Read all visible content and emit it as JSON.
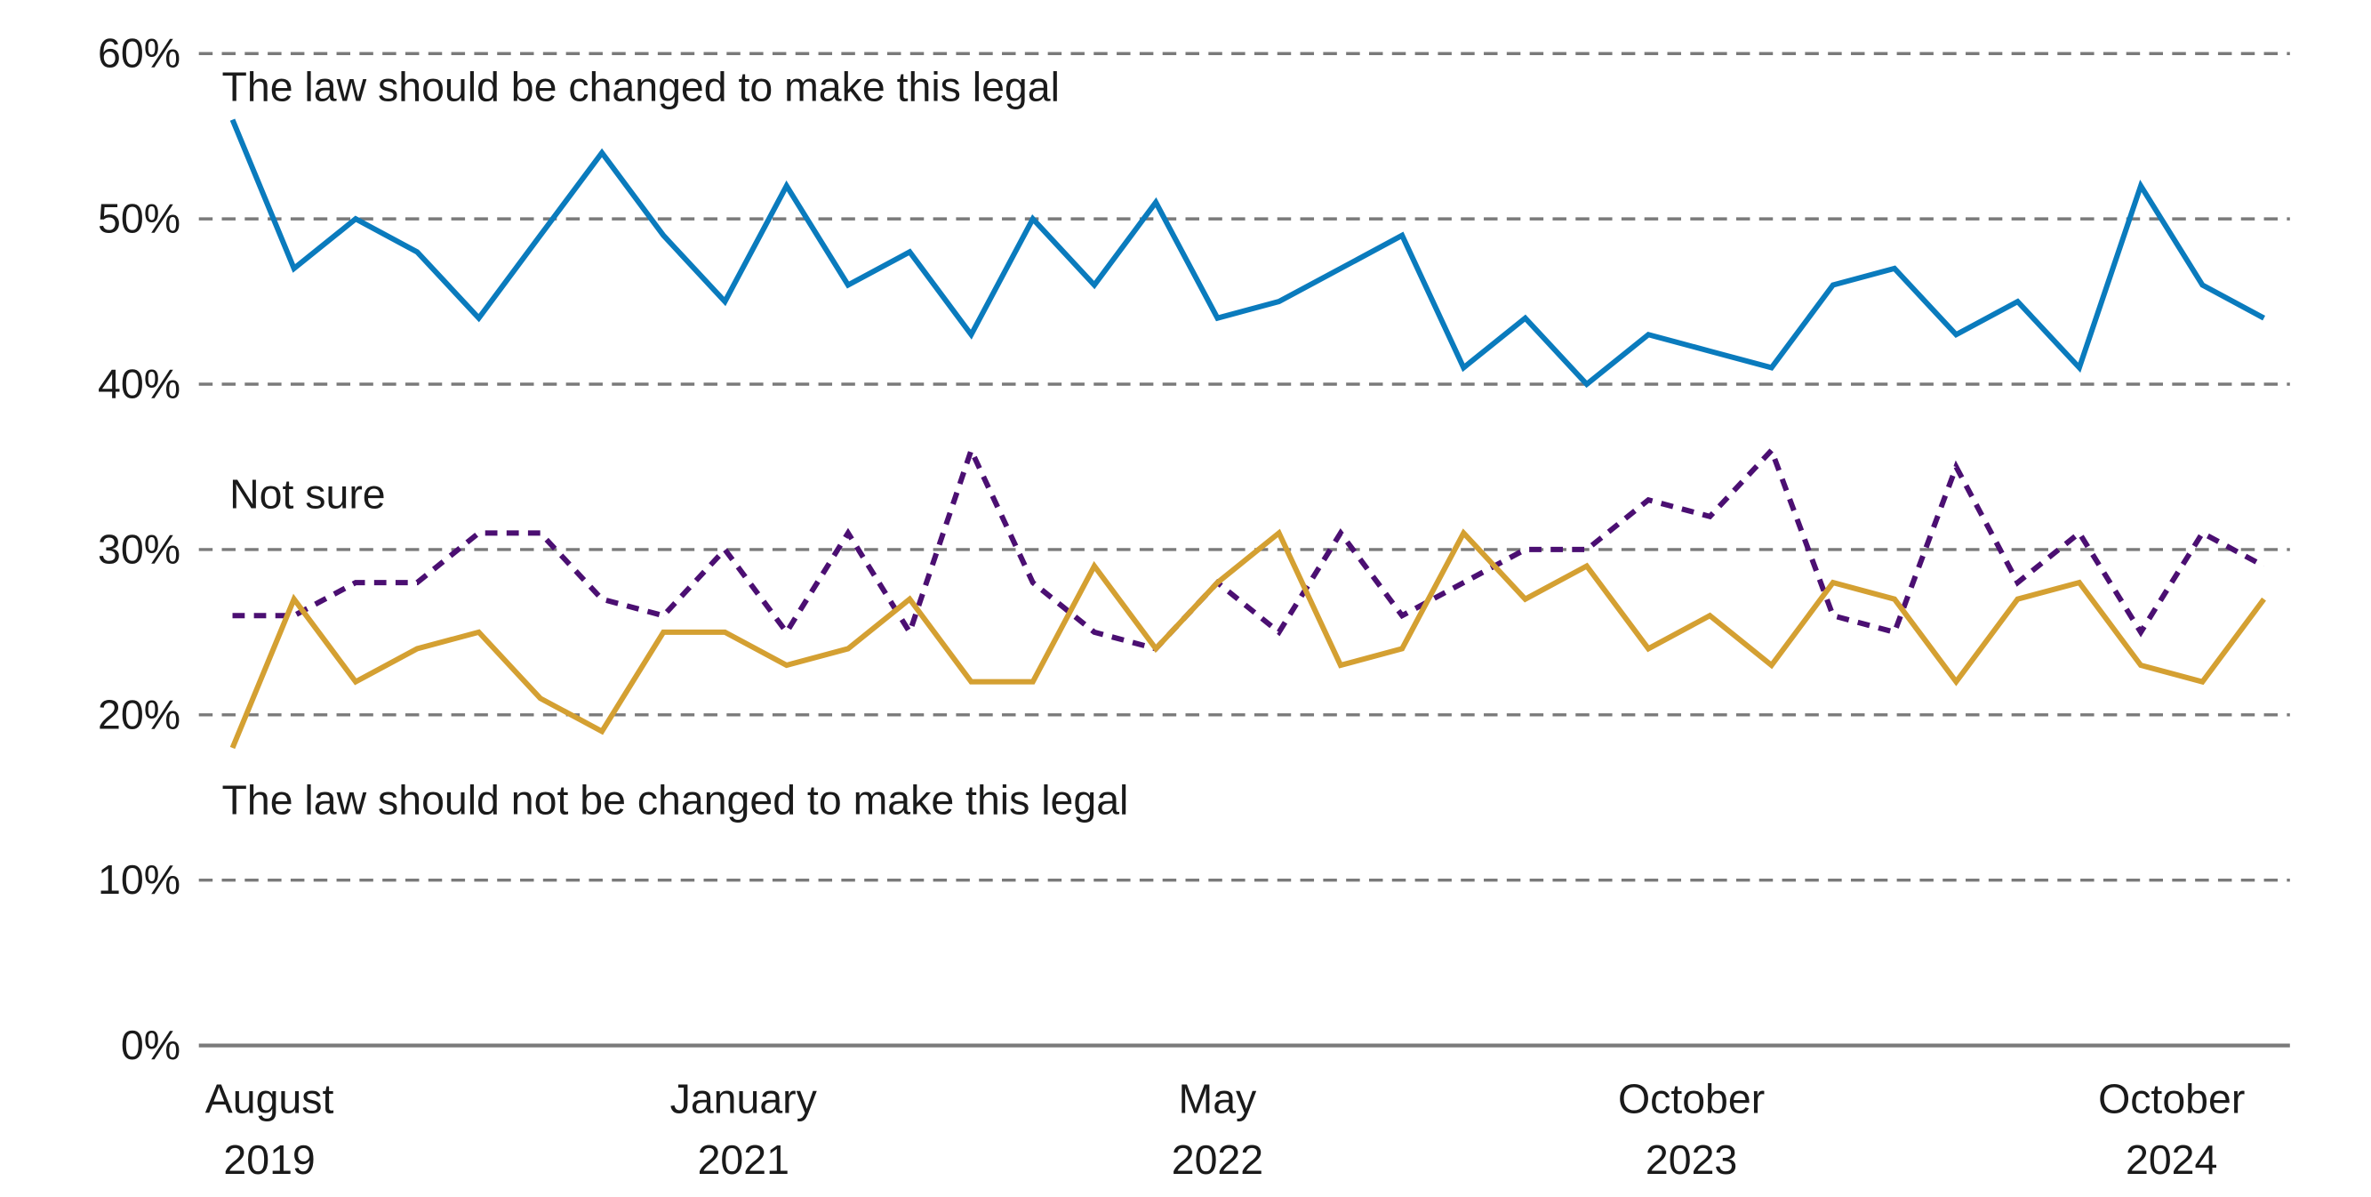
{
  "chart_data": {
    "type": "line",
    "title": "",
    "xlabel": "",
    "ylabel": "",
    "ylim": [
      0,
      60
    ],
    "yticks": [
      {
        "value": 0,
        "label": "0%"
      },
      {
        "value": 10,
        "label": "10%"
      },
      {
        "value": 20,
        "label": "20%"
      },
      {
        "value": 30,
        "label": "30%"
      },
      {
        "value": 40,
        "label": "40%"
      },
      {
        "value": 50,
        "label": "50%"
      },
      {
        "value": 60,
        "label": "60%"
      }
    ],
    "grid": true,
    "n_points": 34,
    "xticks": [
      {
        "at_index": 0.6,
        "line1": "August",
        "line2": "2019"
      },
      {
        "at_index": 8.3,
        "line1": "January",
        "line2": "2021"
      },
      {
        "at_index": 16.0,
        "line1": "May",
        "line2": "2022"
      },
      {
        "at_index": 23.7,
        "line1": "October",
        "line2": "2023"
      },
      {
        "at_index": 31.5,
        "line1": "October",
        "line2": "2024"
      }
    ],
    "series": [
      {
        "name": "The law should be changed to make this legal",
        "color": "#0a7bbd",
        "style": "solid",
        "values": [
          56,
          47,
          50,
          48,
          44,
          49,
          54,
          49,
          45,
          52,
          46,
          48,
          43,
          50,
          46,
          51,
          44,
          45,
          47,
          49,
          41,
          44,
          40,
          43,
          42,
          41,
          46,
          47,
          43,
          45,
          41,
          52,
          46,
          44
        ]
      },
      {
        "name": "Not sure",
        "color": "#4b0f72",
        "style": "dashed",
        "values": [
          26,
          26,
          28,
          28,
          31,
          31,
          27,
          26,
          30,
          25,
          31,
          25,
          36,
          28,
          25,
          24,
          28,
          25,
          31,
          26,
          28,
          30,
          30,
          33,
          32,
          36,
          26,
          25,
          35,
          28,
          31,
          25,
          31,
          29
        ]
      },
      {
        "name": "The law should not be changed to make this legal",
        "color": "#d4a032",
        "style": "solid",
        "values": [
          18,
          27,
          22,
          24,
          25,
          21,
          19,
          25,
          25,
          23,
          24,
          27,
          22,
          22,
          29,
          24,
          28,
          31,
          23,
          24,
          31,
          27,
          29,
          24,
          26,
          23,
          28,
          27,
          22,
          27,
          28,
          23,
          22,
          27
        ]
      }
    ]
  }
}
